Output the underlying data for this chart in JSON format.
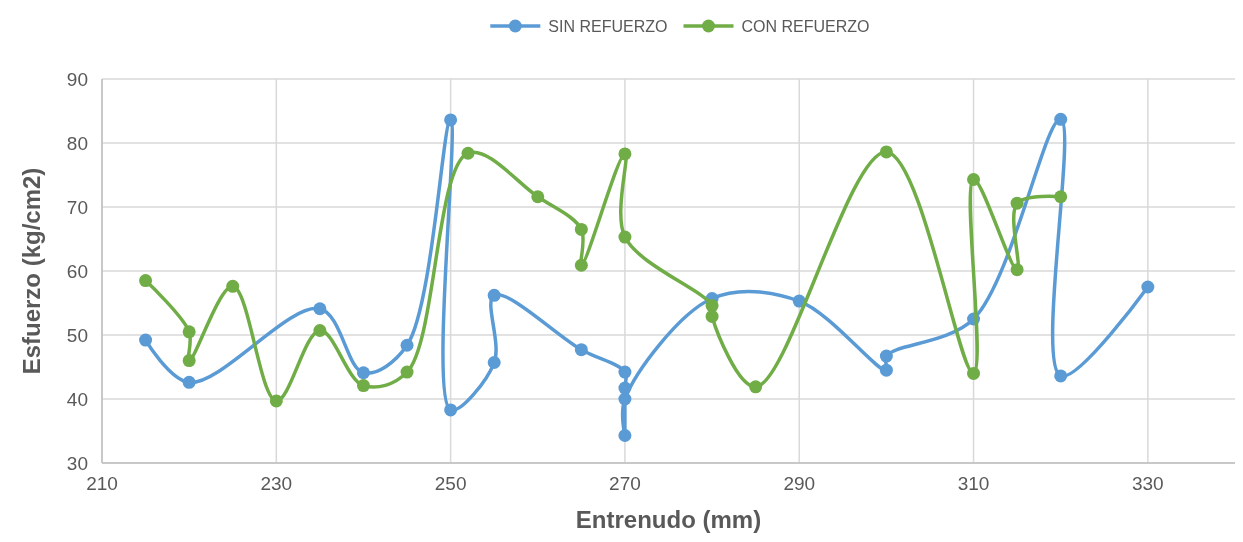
{
  "chart_data": {
    "type": "line",
    "xlabel": "Entrenudo (mm)",
    "ylabel": "Esfuerzo (kg/cm2)",
    "xlim": [
      210,
      340
    ],
    "xticks": [
      210,
      230,
      250,
      270,
      290,
      310,
      330
    ],
    "ylim": [
      30,
      90
    ],
    "yticks": [
      30,
      40,
      50,
      60,
      70,
      80,
      90
    ],
    "grid": true,
    "legend": "top",
    "marker": "circle",
    "line_style": "solid",
    "series": [
      {
        "name": "SIN REFUERZO",
        "color": "#5b9bd5",
        "x": [
          215,
          220,
          235,
          240,
          245,
          250,
          250,
          255,
          255,
          265,
          270,
          270,
          270,
          270,
          280,
          290,
          300,
          300,
          310,
          320,
          320,
          330
        ],
        "values": [
          49.2,
          42.6,
          54.1,
          44.1,
          48.4,
          83.6,
          38.3,
          45.7,
          56.2,
          47.7,
          44.2,
          41.7,
          34.3,
          40.0,
          55.7,
          55.3,
          44.5,
          46.7,
          52.5,
          83.7,
          43.6,
          57.5
        ]
      },
      {
        "name": "CON REFUERZO",
        "color": "#70ad47",
        "x": [
          215,
          220,
          220,
          225,
          230,
          235,
          240,
          245,
          252,
          260,
          265,
          265,
          270,
          270,
          280,
          280,
          285,
          300,
          310,
          310,
          315,
          315,
          320
        ],
        "values": [
          58.5,
          50.5,
          46.0,
          57.6,
          39.7,
          50.7,
          42.1,
          44.2,
          78.4,
          71.6,
          66.5,
          60.9,
          78.3,
          65.3,
          54.6,
          52.9,
          41.9,
          78.6,
          44.0,
          74.3,
          60.2,
          70.6,
          71.6
        ]
      }
    ]
  }
}
